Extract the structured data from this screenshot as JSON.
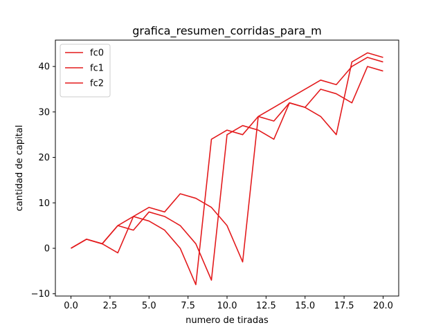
{
  "chart_data": {
    "type": "line",
    "title": "grafica_resumen_corridas_para_m",
    "xlabel": "numero de tiradas",
    "ylabel": "cantidad de capital",
    "xlim": [
      -1.0,
      21.0
    ],
    "ylim": [
      -10.5,
      45.8
    ],
    "xticks": [
      0.0,
      2.5,
      5.0,
      7.5,
      10.0,
      12.5,
      15.0,
      17.5,
      20.0
    ],
    "xtick_labels": [
      "0.0",
      "2.5",
      "5.0",
      "7.5",
      "10.0",
      "12.5",
      "15.0",
      "17.5",
      "20.0"
    ],
    "yticks": [
      -10,
      0,
      10,
      20,
      30,
      40
    ],
    "ytick_labels": [
      "−10",
      "0",
      "10",
      "20",
      "30",
      "40"
    ],
    "grid": false,
    "legend": "upper-left",
    "x": [
      0,
      1,
      2,
      3,
      4,
      5,
      6,
      7,
      8,
      9,
      10,
      11,
      12,
      13,
      14,
      15,
      16,
      17,
      18,
      19,
      20
    ],
    "series": [
      {
        "name": "fc0",
        "color": "#e31a1c",
        "values": [
          0,
          2,
          1,
          -1,
          7,
          6,
          4,
          0,
          -8,
          24,
          26,
          25,
          29,
          31,
          33,
          35,
          37,
          36,
          40,
          42,
          41
        ]
      },
      {
        "name": "fc1",
        "color": "#e31a1c",
        "values": [
          0,
          2,
          1,
          5,
          4,
          8,
          7,
          5,
          1,
          -7,
          25,
          27,
          26,
          24,
          32,
          31,
          35,
          34,
          32,
          40,
          39
        ]
      },
      {
        "name": "fc2",
        "color": "#e31a1c",
        "values": [
          0,
          2,
          1,
          5,
          7,
          9,
          8,
          12,
          11,
          9,
          5,
          -3,
          29,
          28,
          32,
          31,
          29,
          25,
          41,
          43,
          42
        ]
      }
    ]
  }
}
